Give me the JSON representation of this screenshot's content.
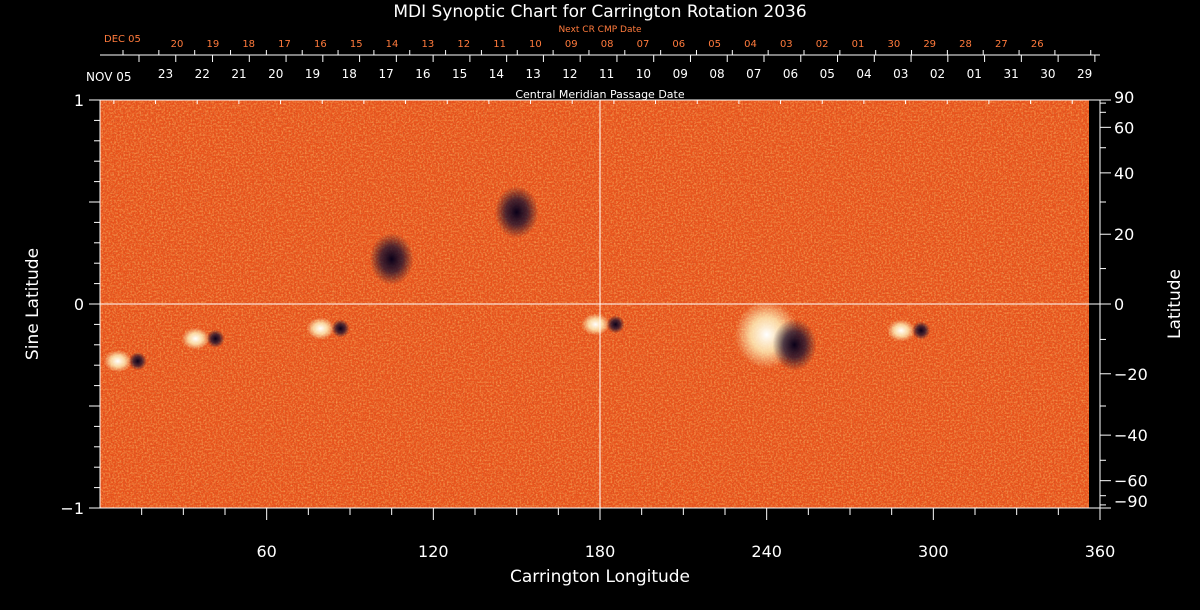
{
  "chart_data": {
    "type": "heatmap",
    "title": "MDI Synoptic Chart for Carrington Rotation 2036",
    "xlabel": "Carrington Longitude",
    "ylabel_left": "Sine Latitude",
    "ylabel_right": "Latitude",
    "xlim": [
      0,
      360
    ],
    "ylim_sine": [
      -1,
      1
    ],
    "x_ticks": [
      60,
      120,
      180,
      240,
      300,
      360
    ],
    "y_ticks_sine": [
      {
        "value": 1,
        "label": "1"
      },
      {
        "value": 0,
        "label": "0"
      },
      {
        "value": -1,
        "label": "−1"
      }
    ],
    "y_ticks_latitude": [
      {
        "deg": 90,
        "label": "90"
      },
      {
        "deg": 60,
        "label": "60"
      },
      {
        "deg": 40,
        "label": "40"
      },
      {
        "deg": 20,
        "label": "20"
      },
      {
        "deg": 0,
        "label": "0"
      },
      {
        "deg": -20,
        "label": "−20"
      },
      {
        "deg": -40,
        "label": "−40"
      },
      {
        "deg": -60,
        "label": "−60"
      },
      {
        "deg": -90,
        "label": "−90"
      }
    ],
    "cmp_axis": {
      "label": "Central Meridian Passage Date",
      "start_label": "NOV 05",
      "dates": [
        "23",
        "22",
        "21",
        "20",
        "19",
        "18",
        "17",
        "16",
        "15",
        "14",
        "13",
        "12",
        "11",
        "10",
        "09",
        "08",
        "07",
        "06",
        "05",
        "04",
        "03",
        "02",
        "01",
        "31",
        "30",
        "29"
      ]
    },
    "next_cmp_axis": {
      "label": "Next CR CMP Date",
      "start_label": "DEC 05",
      "dates": [
        "20",
        "19",
        "18",
        "17",
        "16",
        "15",
        "14",
        "13",
        "12",
        "11",
        "10",
        "09",
        "08",
        "07",
        "06",
        "05",
        "04",
        "03",
        "02",
        "01",
        "30",
        "29",
        "28",
        "27",
        "26"
      ]
    },
    "active_regions": [
      {
        "lon": 10,
        "sinlat": -0.28,
        "polarity": "mixed"
      },
      {
        "lon": 38,
        "sinlat": -0.17,
        "polarity": "mixed"
      },
      {
        "lon": 83,
        "sinlat": -0.12,
        "polarity": "bipolar"
      },
      {
        "lon": 105,
        "sinlat": 0.22,
        "polarity": "negative"
      },
      {
        "lon": 150,
        "sinlat": 0.45,
        "polarity": "negative"
      },
      {
        "lon": 182,
        "sinlat": -0.1,
        "polarity": "bipolar"
      },
      {
        "lon": 240,
        "sinlat": -0.15,
        "polarity": "positive"
      },
      {
        "lon": 250,
        "sinlat": -0.2,
        "polarity": "negative"
      },
      {
        "lon": 292,
        "sinlat": -0.13,
        "polarity": "bipolar"
      }
    ],
    "colors": {
      "background": "#000000",
      "map_base": "#e8531c",
      "positive_field": "#fff4c0",
      "negative_field": "#1a1030",
      "crosshair": "#ffffff",
      "next_cr_text": "#ff7a3c"
    }
  }
}
